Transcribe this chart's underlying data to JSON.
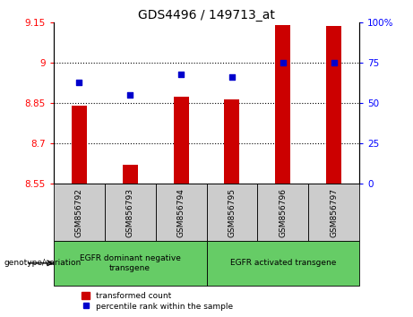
{
  "title": "GDS4496 / 149713_at",
  "samples": [
    "GSM856792",
    "GSM856793",
    "GSM856794",
    "GSM856795",
    "GSM856796",
    "GSM856797"
  ],
  "bar_values": [
    8.84,
    8.62,
    8.875,
    8.865,
    9.14,
    9.135
  ],
  "scatter_values": [
    8.925,
    8.88,
    8.955,
    8.945,
    9.0,
    9.0
  ],
  "bar_bottom": 8.55,
  "ylim_left": [
    8.55,
    9.15
  ],
  "ylim_right": [
    0,
    100
  ],
  "yticks_left": [
    8.55,
    8.7,
    8.85,
    9.0,
    9.15
  ],
  "yticks_right": [
    0,
    25,
    50,
    75,
    100
  ],
  "ytick_labels_left": [
    "8.55",
    "8.7",
    "8.85",
    "9",
    "9.15"
  ],
  "ytick_labels_right": [
    "0",
    "25",
    "50",
    "75",
    "100%"
  ],
  "hlines": [
    9.0,
    8.85,
    8.7
  ],
  "bar_color": "#CC0000",
  "scatter_color": "#0000CC",
  "group1_label": "EGFR dominant negative\ntransgene",
  "group2_label": "EGFR activated transgene",
  "group1_indices": [
    0,
    1,
    2
  ],
  "group2_indices": [
    3,
    4,
    5
  ],
  "group_bg_color": "#66CC66",
  "sample_bg_color": "#CCCCCC",
  "legend_bar_label": "transformed count",
  "legend_scatter_label": "percentile rank within the sample",
  "genotype_label": "genotype/variation",
  "title_fontsize": 10,
  "tick_fontsize": 7.5,
  "label_fontsize": 7,
  "bar_width": 0.3
}
